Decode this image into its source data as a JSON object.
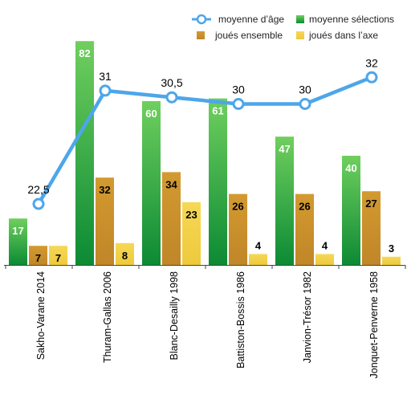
{
  "chart_data": {
    "type": "bar",
    "categories": [
      "Sakho-Varane 2014",
      "Thuram-Gallas 2006",
      "Blanc-Desailly 1998",
      "Battiston-Bossis 1986",
      "Janvion-Trésor 1982",
      "Jonquet-Penverne 1958"
    ],
    "series": [
      {
        "name": "moyenne sélections",
        "values": [
          17,
          82,
          60,
          61,
          47,
          40
        ],
        "color": "#1a9a3a",
        "label_color": "#ffffff"
      },
      {
        "name": "joués ensemble",
        "values": [
          7,
          32,
          34,
          26,
          26,
          27
        ],
        "color": "#c8912a",
        "label_color": "#000000"
      },
      {
        "name": "joués dans l’axe",
        "values": [
          7,
          8,
          23,
          4,
          4,
          3
        ],
        "color": "#f2d048",
        "label_color": "#000000"
      }
    ],
    "line_series": {
      "name": "moyenne d’âge",
      "values": [
        22.5,
        31,
        30.5,
        30,
        30,
        32
      ],
      "labels": [
        "22,5",
        "31",
        "30,5",
        "30",
        "30",
        "32"
      ],
      "color": "#4da6ea"
    },
    "ylim_bars": [
      0,
      100
    ],
    "ylim_line": [
      0,
      40
    ],
    "grid": false,
    "legend_position": "top-right"
  }
}
